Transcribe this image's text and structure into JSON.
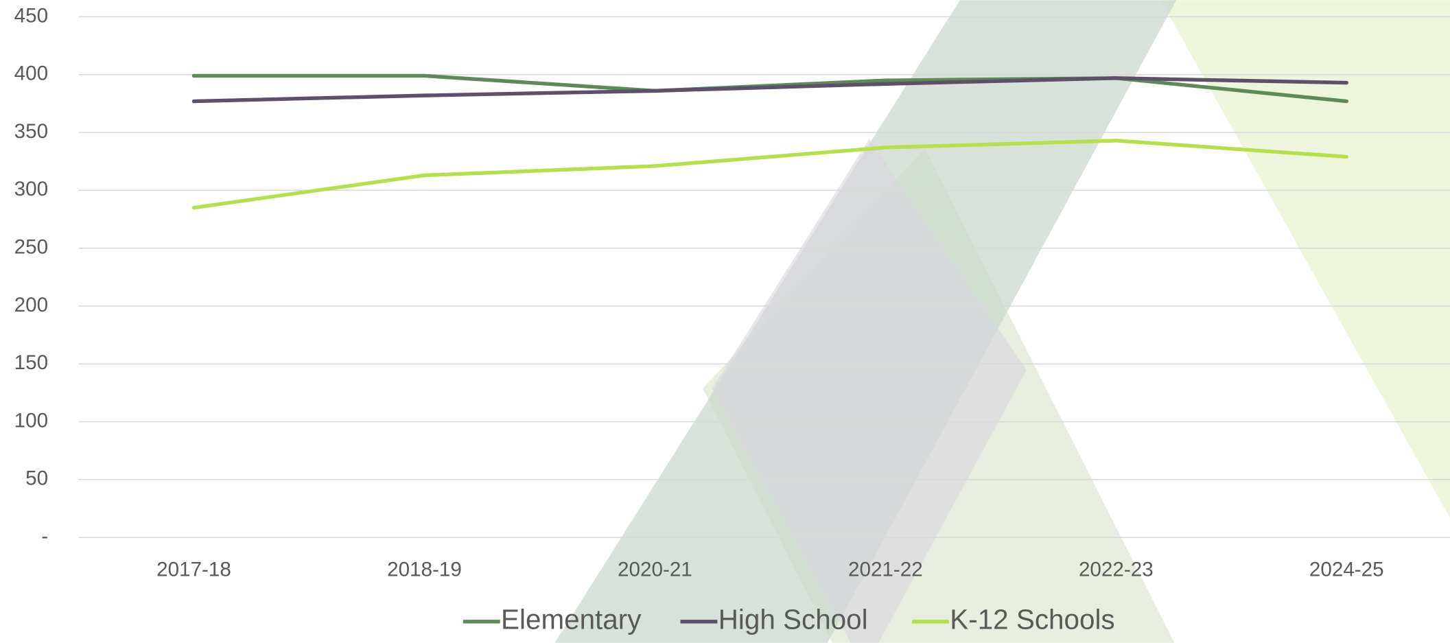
{
  "chart_data": {
    "type": "line",
    "categories": [
      "2017-18",
      "2018-19",
      "2020-21",
      "2021-22",
      "2022-23",
      "2024-25"
    ],
    "series": [
      {
        "name": "Elementary",
        "color": "#5e8a5a",
        "values": [
          399,
          399,
          386,
          395,
          397,
          377
        ]
      },
      {
        "name": "High School",
        "color": "#5d5068",
        "values": [
          377,
          382,
          386,
          392,
          397,
          393
        ]
      },
      {
        "name": "K-12 Schools",
        "color": "#b5e04a",
        "values": [
          285,
          313,
          321,
          337,
          343,
          329
        ]
      }
    ],
    "ylim": [
      0,
      450
    ],
    "yticks": [
      {
        "value": 0,
        "label": "-"
      },
      50,
      100,
      150,
      200,
      250,
      300,
      350,
      400,
      450
    ],
    "grid": true
  }
}
